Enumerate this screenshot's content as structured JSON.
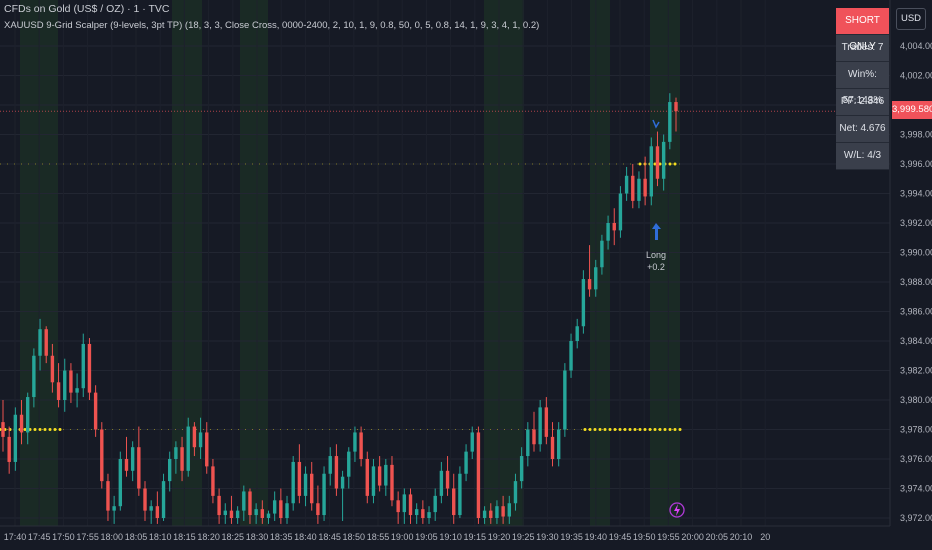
{
  "header": {
    "title": "CFDs on Gold (US$ / OZ) · 1 · TVC",
    "indicator": "XAUUSD 9-Grid Scalper (9-levels, 3pt TP) (18, 3, 3, Close Cross, 0000-2400, 2, 10, 1, 9, 0.8, 50, 0, 5, 0.8, 14, 1, 9, 3, 4, 1, 0.2)"
  },
  "currency_button": "USD",
  "last_price": "3,999.580",
  "stats_table": {
    "header": "SHORT ONLY",
    "rows": [
      "Trades: 7",
      "Win%: 57.143%",
      "PF: 2.846",
      "Net: 4.676",
      "W/L: 4/3"
    ]
  },
  "trade_label": {
    "side": "Long",
    "pnl": "+0.2"
  },
  "colors": {
    "up": "#26a69a",
    "down": "#ef5350",
    "background": "#161a25",
    "level": "#f5e020",
    "session": "#1b2e26",
    "last_price": "#f0525a"
  },
  "chart_data": {
    "type": "candlestick",
    "y_axis_ticks": [
      "4,004.000",
      "4,002.000",
      "4,000.000",
      "3,998.000",
      "3,996.000",
      "3,994.000",
      "3,992.000",
      "3,990.000",
      "3,988.000",
      "3,986.000",
      "3,984.000",
      "3,982.000",
      "3,980.000",
      "3,978.000",
      "3,976.000",
      "3,974.000",
      "3,972.000"
    ],
    "ylim": [
      3971.5,
      4005.3
    ],
    "x_axis_ticks": [
      "17:40",
      "17:45",
      "17:50",
      "17:55",
      "18:00",
      "18:05",
      "18:10",
      "18:15",
      "18:20",
      "18:25",
      "18:30",
      "18:35",
      "18:40",
      "18:45",
      "18:50",
      "18:55",
      "19:00",
      "19:05",
      "19:10",
      "19:15",
      "19:20",
      "19:25",
      "19:30",
      "19:35",
      "19:40",
      "19:45",
      "19:50",
      "19:55",
      "20:00",
      "20:05",
      "20:10",
      "20"
    ],
    "levels": [
      3996.0,
      3978.0
    ],
    "last_price": 3999.58,
    "ohlc": [
      [
        3978.5,
        3980.0,
        3976.5,
        3977.5
      ],
      [
        3977.5,
        3978.2,
        3975.0,
        3975.8
      ],
      [
        3975.8,
        3979.5,
        3975.2,
        3979.0
      ],
      [
        3979.0,
        3980.0,
        3977.0,
        3977.8
      ],
      [
        3977.8,
        3980.5,
        3977.0,
        3980.2
      ],
      [
        3980.2,
        3983.5,
        3979.5,
        3983.0
      ],
      [
        3983.0,
        3985.5,
        3982.0,
        3984.8
      ],
      [
        3984.8,
        3985.0,
        3982.5,
        3983.0
      ],
      [
        3983.0,
        3983.8,
        3980.5,
        3981.2
      ],
      [
        3981.2,
        3982.5,
        3979.5,
        3980.0
      ],
      [
        3980.0,
        3982.8,
        3979.2,
        3982.0
      ],
      [
        3982.0,
        3982.5,
        3979.8,
        3980.5
      ],
      [
        3980.5,
        3981.8,
        3979.5,
        3980.8
      ],
      [
        3980.8,
        3984.5,
        3980.2,
        3983.8
      ],
      [
        3983.8,
        3984.2,
        3980.0,
        3980.5
      ],
      [
        3980.5,
        3981.0,
        3977.5,
        3978.0
      ],
      [
        3978.0,
        3978.5,
        3974.0,
        3974.5
      ],
      [
        3974.5,
        3975.0,
        3971.8,
        3972.5
      ],
      [
        3972.5,
        3973.5,
        3971.6,
        3972.8
      ],
      [
        3972.8,
        3976.5,
        3972.5,
        3976.0
      ],
      [
        3976.0,
        3977.5,
        3974.8,
        3975.2
      ],
      [
        3975.2,
        3977.2,
        3974.5,
        3976.8
      ],
      [
        3976.8,
        3978.2,
        3973.5,
        3974.0
      ],
      [
        3974.0,
        3974.5,
        3971.8,
        3972.5
      ],
      [
        3972.5,
        3973.2,
        3971.6,
        3972.8
      ],
      [
        3972.8,
        3973.8,
        3971.6,
        3972.0
      ],
      [
        3972.0,
        3975.0,
        3971.8,
        3974.5
      ],
      [
        3974.5,
        3976.5,
        3973.8,
        3976.0
      ],
      [
        3976.0,
        3977.2,
        3975.0,
        3976.8
      ],
      [
        3976.8,
        3977.5,
        3974.5,
        3975.2
      ],
      [
        3975.2,
        3978.8,
        3974.8,
        3978.2
      ],
      [
        3978.2,
        3978.5,
        3976.2,
        3976.8
      ],
      [
        3976.8,
        3978.8,
        3976.0,
        3977.8
      ],
      [
        3977.8,
        3978.5,
        3975.0,
        3975.5
      ],
      [
        3975.5,
        3976.0,
        3973.0,
        3973.5
      ],
      [
        3973.5,
        3974.0,
        3971.6,
        3972.2
      ],
      [
        3972.2,
        3973.0,
        3971.6,
        3972.5
      ],
      [
        3972.5,
        3973.5,
        3971.6,
        3972.0
      ],
      [
        3972.0,
        3972.8,
        3971.6,
        3972.5
      ],
      [
        3972.5,
        3974.2,
        3971.8,
        3973.8
      ],
      [
        3973.8,
        3974.0,
        3971.6,
        3972.2
      ],
      [
        3972.2,
        3973.0,
        3971.6,
        3972.6
      ],
      [
        3972.6,
        3973.2,
        3971.6,
        3972.0
      ],
      [
        3972.0,
        3972.5,
        3971.6,
        3972.3
      ],
      [
        3972.3,
        3973.8,
        3971.8,
        3973.2
      ],
      [
        3973.2,
        3974.0,
        3971.6,
        3972.0
      ],
      [
        3972.0,
        3973.5,
        3971.6,
        3973.0
      ],
      [
        3973.0,
        3976.2,
        3972.5,
        3975.8
      ],
      [
        3975.8,
        3977.0,
        3973.0,
        3973.5
      ],
      [
        3973.5,
        3975.5,
        3972.8,
        3975.0
      ],
      [
        3975.0,
        3975.8,
        3972.5,
        3973.0
      ],
      [
        3973.0,
        3974.2,
        3971.6,
        3972.2
      ],
      [
        3972.2,
        3975.5,
        3971.8,
        3975.0
      ],
      [
        3975.0,
        3976.8,
        3974.2,
        3976.2
      ],
      [
        3976.2,
        3977.0,
        3973.5,
        3974.0
      ],
      [
        3974.0,
        3975.2,
        3971.8,
        3974.8
      ],
      [
        3974.8,
        3976.8,
        3974.0,
        3976.5
      ],
      [
        3976.5,
        3978.2,
        3975.8,
        3977.8
      ],
      [
        3977.8,
        3978.2,
        3975.5,
        3976.0
      ],
      [
        3976.0,
        3976.5,
        3973.0,
        3973.5
      ],
      [
        3973.5,
        3976.0,
        3973.0,
        3975.5
      ],
      [
        3975.5,
        3976.2,
        3973.8,
        3974.2
      ],
      [
        3974.2,
        3976.0,
        3973.5,
        3975.6
      ],
      [
        3975.6,
        3976.2,
        3972.8,
        3973.2
      ],
      [
        3973.2,
        3973.8,
        3971.6,
        3972.4
      ],
      [
        3972.4,
        3974.0,
        3971.6,
        3973.6
      ],
      [
        3973.6,
        3974.0,
        3971.6,
        3972.2
      ],
      [
        3972.2,
        3973.0,
        3971.6,
        3972.6
      ],
      [
        3972.6,
        3973.2,
        3971.6,
        3972.0
      ],
      [
        3972.0,
        3972.8,
        3971.6,
        3972.4
      ],
      [
        3972.4,
        3974.0,
        3971.8,
        3973.5
      ],
      [
        3973.5,
        3975.8,
        3973.0,
        3975.2
      ],
      [
        3975.2,
        3976.2,
        3973.5,
        3974.0
      ],
      [
        3974.0,
        3975.0,
        3971.6,
        3972.2
      ],
      [
        3972.2,
        3975.5,
        3972.0,
        3975.0
      ],
      [
        3975.0,
        3977.0,
        3974.5,
        3976.5
      ],
      [
        3976.5,
        3978.2,
        3976.0,
        3977.8
      ],
      [
        3977.8,
        3978.2,
        3971.6,
        3972.0
      ],
      [
        3972.0,
        3972.8,
        3971.6,
        3972.5
      ],
      [
        3972.5,
        3973.0,
        3971.6,
        3972.0
      ],
      [
        3972.0,
        3973.2,
        3971.6,
        3972.8
      ],
      [
        3972.8,
        3973.5,
        3971.6,
        3972.1
      ],
      [
        3972.1,
        3973.5,
        3971.6,
        3973.0
      ],
      [
        3973.0,
        3975.0,
        3972.5,
        3974.5
      ],
      [
        3974.5,
        3976.8,
        3974.0,
        3976.2
      ],
      [
        3976.2,
        3978.5,
        3975.5,
        3978.0
      ],
      [
        3978.0,
        3979.2,
        3976.5,
        3977.0
      ],
      [
        3977.0,
        3980.0,
        3976.5,
        3979.5
      ],
      [
        3979.5,
        3980.2,
        3977.0,
        3977.5
      ],
      [
        3977.5,
        3978.5,
        3975.5,
        3976.0
      ],
      [
        3976.0,
        3978.5,
        3975.5,
        3978.0
      ],
      [
        3978.0,
        3982.5,
        3977.5,
        3982.0
      ],
      [
        3982.0,
        3984.5,
        3981.5,
        3984.0
      ],
      [
        3984.0,
        3985.5,
        3983.5,
        3985.0
      ],
      [
        3985.0,
        3988.8,
        3984.5,
        3988.2
      ],
      [
        3988.2,
        3990.5,
        3987.0,
        3987.5
      ],
      [
        3987.5,
        3989.5,
        3987.0,
        3989.0
      ],
      [
        3989.0,
        3991.2,
        3988.5,
        3990.8
      ],
      [
        3990.8,
        3992.5,
        3990.2,
        3992.0
      ],
      [
        3992.0,
        3993.0,
        3990.5,
        3991.5
      ],
      [
        3991.5,
        3994.5,
        3991.0,
        3994.0
      ],
      [
        3994.0,
        3995.8,
        3993.5,
        3995.2
      ],
      [
        3995.2,
        3996.0,
        3993.0,
        3993.5
      ],
      [
        3993.5,
        3995.5,
        3993.0,
        3995.0
      ],
      [
        3995.0,
        3996.5,
        3993.2,
        3993.8
      ],
      [
        3993.8,
        3997.8,
        3993.2,
        3997.2
      ],
      [
        3997.2,
        3998.2,
        3994.5,
        3995.0
      ],
      [
        3995.0,
        3998.0,
        3994.2,
        3997.5
      ],
      [
        3997.5,
        4000.8,
        3997.0,
        4000.2
      ],
      [
        4000.2,
        4000.5,
        3998.2,
        3999.58
      ]
    ]
  }
}
